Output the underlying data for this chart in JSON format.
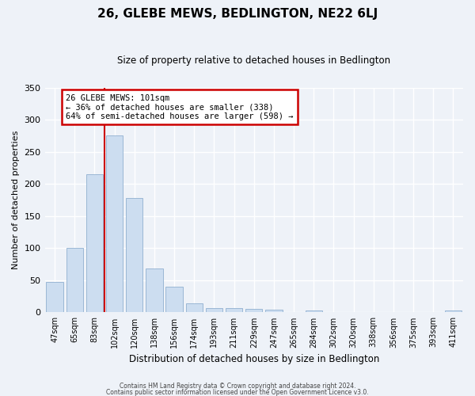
{
  "title": "26, GLEBE MEWS, BEDLINGTON, NE22 6LJ",
  "subtitle": "Size of property relative to detached houses in Bedlington",
  "xlabel": "Distribution of detached houses by size in Bedlington",
  "ylabel": "Number of detached properties",
  "bar_labels": [
    "47sqm",
    "65sqm",
    "83sqm",
    "102sqm",
    "120sqm",
    "138sqm",
    "156sqm",
    "174sqm",
    "193sqm",
    "211sqm",
    "229sqm",
    "247sqm",
    "265sqm",
    "284sqm",
    "302sqm",
    "320sqm",
    "338sqm",
    "356sqm",
    "375sqm",
    "393sqm",
    "411sqm"
  ],
  "bar_values": [
    47,
    100,
    215,
    275,
    178,
    68,
    40,
    14,
    7,
    7,
    5,
    4,
    0,
    3,
    0,
    0,
    0,
    0,
    0,
    0,
    3
  ],
  "bar_color": "#ccddf0",
  "bar_edge_color": "#90b0d0",
  "vline_x": 2.5,
  "vline_color": "#cc0000",
  "annotation_title": "26 GLEBE MEWS: 101sqm",
  "annotation_line1": "← 36% of detached houses are smaller (338)",
  "annotation_line2": "64% of semi-detached houses are larger (598) →",
  "annotation_box_color": "#ffffff",
  "annotation_box_edge": "#cc0000",
  "ylim": [
    0,
    350
  ],
  "yticks": [
    0,
    50,
    100,
    150,
    200,
    250,
    300,
    350
  ],
  "footer1": "Contains HM Land Registry data © Crown copyright and database right 2024.",
  "footer2": "Contains public sector information licensed under the Open Government Licence v3.0.",
  "bg_color": "#eef2f8",
  "plot_bg_color": "#eef2f8"
}
